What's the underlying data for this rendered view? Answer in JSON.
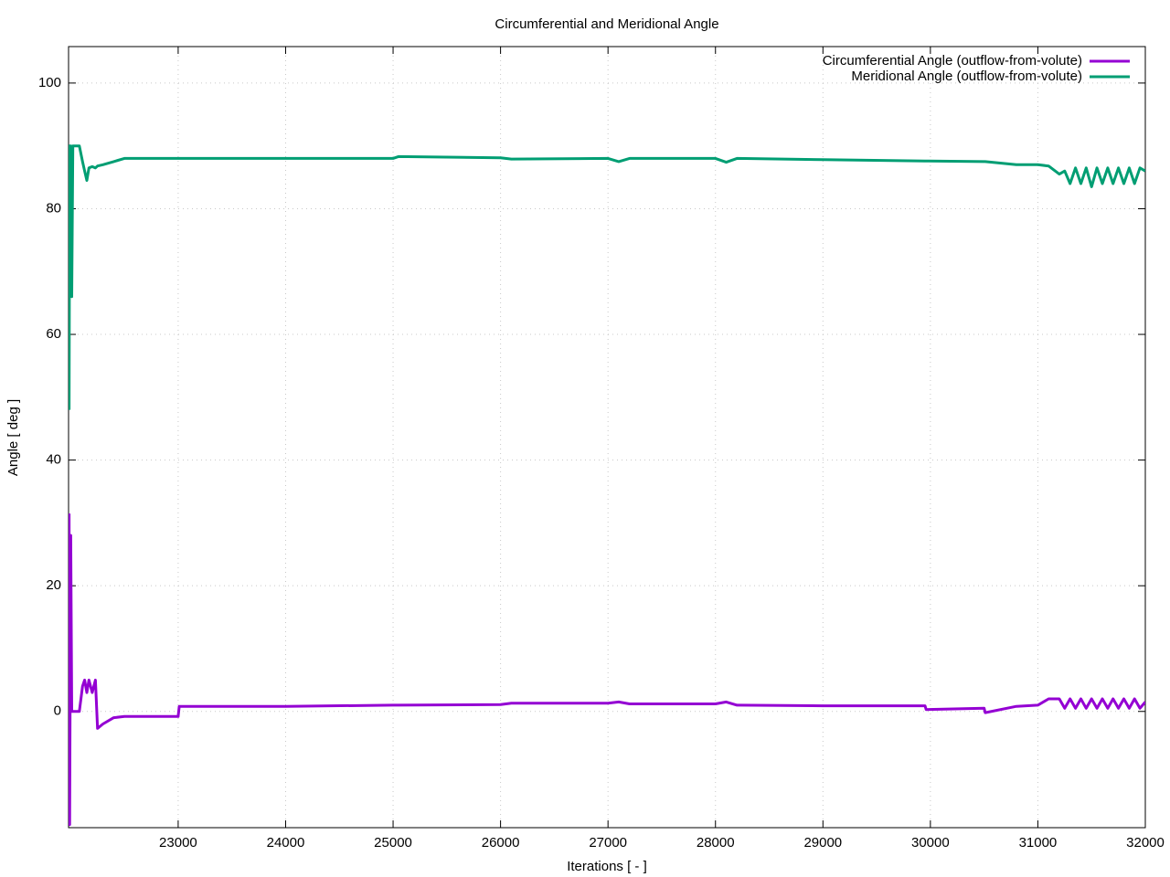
{
  "chart_data": {
    "type": "line",
    "title": "Circumferential and Meridional Angle",
    "x_label": "Iterations [ - ]",
    "y_label": "Angle [ deg ]",
    "x": [
      21985,
      21990,
      22000,
      22010,
      22020,
      22050,
      22080,
      22110,
      22130,
      22150,
      22170,
      22200,
      22230,
      22250,
      22300,
      22400,
      22500,
      23000,
      23010,
      24000,
      25000,
      25050,
      26000,
      26100,
      27000,
      27100,
      27200,
      28000,
      28100,
      28200,
      29000,
      29950,
      29960,
      30500,
      30510,
      30800,
      31000,
      31100,
      31200,
      31250,
      31300,
      31350,
      31400,
      31450,
      31500,
      31550,
      31600,
      31650,
      31700,
      31750,
      31800,
      31850,
      31900,
      31950,
      32000
    ],
    "series": [
      {
        "name": "Circumferential Angle (outflow-from-volute)",
        "color": "#9400d3",
        "values": [
          31.5,
          -18,
          28,
          0,
          0,
          0,
          0,
          4,
          5,
          3,
          5,
          3,
          5,
          -2.7,
          -2,
          -1,
          -0.8,
          -0.8,
          0.8,
          0.8,
          1,
          1,
          1.1,
          1.3,
          1.3,
          1.5,
          1.2,
          1.2,
          1.5,
          1,
          0.9,
          0.9,
          0.3,
          0.5,
          -0.2,
          0.8,
          1,
          2,
          2,
          0.5,
          2,
          0.5,
          2,
          0.5,
          2,
          0.5,
          2,
          0.5,
          2,
          0.5,
          2,
          0.5,
          2,
          0.5,
          1.5
        ]
      },
      {
        "name": "Meridional Angle (outflow-from-volute)",
        "color": "#009e73",
        "values": [
          48,
          90,
          90,
          66,
          90,
          90,
          90,
          87.5,
          86,
          84.5,
          86.5,
          86.7,
          86.5,
          86.8,
          87,
          87.5,
          88,
          88,
          88,
          88,
          88,
          88.3,
          88.1,
          87.9,
          88,
          87.5,
          88,
          88,
          87.4,
          88,
          87.8,
          87.6,
          87.6,
          87.5,
          87.5,
          87,
          87,
          86.8,
          85.5,
          86,
          84,
          86.5,
          84,
          86.5,
          83.5,
          86.5,
          84,
          86.5,
          84,
          86.5,
          84,
          86.5,
          84,
          86.5,
          86
        ]
      }
    ],
    "xlim": [
      21980,
      32000
    ],
    "ylim": [
      -18.5,
      105.8
    ],
    "xticks": [
      23000,
      24000,
      25000,
      26000,
      27000,
      28000,
      29000,
      30000,
      31000,
      32000
    ],
    "yticks": [
      0,
      20,
      40,
      60,
      80,
      100
    ],
    "grid": true,
    "legend": "top-right"
  }
}
